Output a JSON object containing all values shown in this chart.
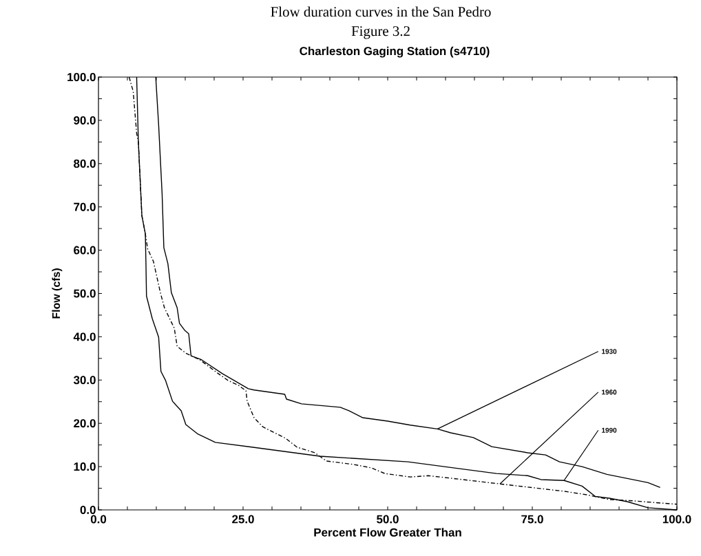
{
  "chart_data": {
    "type": "line",
    "title": "Flow duration curves in the San Pedro",
    "subtitle": "Figure 3.2",
    "xlabel": "Percent Flow Greater Than",
    "ylabel": "Flow (cfs)",
    "xlim": [
      0,
      100
    ],
    "ylim": [
      0,
      100
    ],
    "xticks": [
      {
        "value": 0,
        "label": "0.0"
      },
      {
        "value": 5,
        "label": null
      },
      {
        "value": 10,
        "label": null
      },
      {
        "value": 15,
        "label": null
      },
      {
        "value": 20,
        "label": null
      },
      {
        "value": 25,
        "label": "25.0"
      },
      {
        "value": 30,
        "label": null
      },
      {
        "value": 35,
        "label": null
      },
      {
        "value": 40,
        "label": null
      },
      {
        "value": 45,
        "label": null
      },
      {
        "value": 50,
        "label": "50.0"
      },
      {
        "value": 55,
        "label": null
      },
      {
        "value": 60,
        "label": null
      },
      {
        "value": 65,
        "label": null
      },
      {
        "value": 70,
        "label": null
      },
      {
        "value": 75,
        "label": "75.0"
      },
      {
        "value": 80,
        "label": null
      },
      {
        "value": 85,
        "label": null
      },
      {
        "value": 90,
        "label": null
      },
      {
        "value": 95,
        "label": null
      },
      {
        "value": 100,
        "label": "100.0"
      }
    ],
    "yticks": [
      {
        "value": 0,
        "label": "0.0"
      },
      {
        "value": 5,
        "label": null
      },
      {
        "value": 10,
        "label": "10.0"
      },
      {
        "value": 15,
        "label": null
      },
      {
        "value": 20,
        "label": "20.0"
      },
      {
        "value": 25,
        "label": null
      },
      {
        "value": 30,
        "label": "30.0"
      },
      {
        "value": 35,
        "label": null
      },
      {
        "value": 40,
        "label": "40.0"
      },
      {
        "value": 45,
        "label": null
      },
      {
        "value": 50,
        "label": "50.0"
      },
      {
        "value": 55,
        "label": null
      },
      {
        "value": 60,
        "label": "60.0"
      },
      {
        "value": 65,
        "label": null
      },
      {
        "value": 70,
        "label": "70.0"
      },
      {
        "value": 75,
        "label": null
      },
      {
        "value": 80,
        "label": "80.0"
      },
      {
        "value": 85,
        "label": null
      },
      {
        "value": 90,
        "label": "90.0"
      },
      {
        "value": 95,
        "label": null
      },
      {
        "value": 100,
        "label": "100.0"
      }
    ],
    "marker": "none",
    "series": [
      {
        "color": "#000000",
        "line_style": "solid",
        "x": [
          9.9,
          10.4,
          11.0,
          11.3,
          12.0,
          12.6,
          13.6,
          14.0,
          14.9,
          15.6,
          16.0,
          17.8,
          21.4,
          25.9,
          26.9,
          32.2,
          32.5,
          35.1,
          41.8,
          43.3,
          45.7,
          50.0,
          53.9,
          58.6,
          60.9,
          64.8,
          68.0,
          74.2,
          77.3,
          79.7,
          83.6,
          87.9,
          95.0,
          97.1
        ],
        "values": [
          100,
          89,
          73,
          60.6,
          56.9,
          50.2,
          46.7,
          43.1,
          41.5,
          40.7,
          35.6,
          34.7,
          31.5,
          28.0,
          27.7,
          26.7,
          25.6,
          24.5,
          23.7,
          22.9,
          21.3,
          20.5,
          19.6,
          18.7,
          17.8,
          16.7,
          14.6,
          13.2,
          12.7,
          11.1,
          10.0,
          8.2,
          6.3,
          5.2
        ]
      },
      {
        "color": "#000000",
        "line_style": "dashdot",
        "x": [
          5.3,
          6.0,
          6.6,
          6.9,
          7.5,
          8.1,
          8.5,
          9.5,
          10.7,
          11.4,
          13.1,
          13.6,
          15.1,
          17.5,
          20.7,
          22.4,
          24.2,
          25.5,
          25.7,
          26.9,
          28.4,
          32.4,
          34.3,
          37.4,
          39.4,
          44.1,
          47.2,
          49.5,
          53.9,
          57.0,
          61.7,
          69.4,
          80.5,
          84.4,
          88.3,
          92.3,
          100
        ],
        "values": [
          100,
          96.7,
          87,
          84.9,
          68,
          63.8,
          60.3,
          57.4,
          50.2,
          46.7,
          42.0,
          37.8,
          36.2,
          34.7,
          31.5,
          29.9,
          28.8,
          27.5,
          25.1,
          21.3,
          19.2,
          16.5,
          14.5,
          13.2,
          11.3,
          10.5,
          9.7,
          8.4,
          7.6,
          7.9,
          7.2,
          6.0,
          4.3,
          3.5,
          2.4,
          2.1,
          1.3
        ]
      },
      {
        "color": "#000000",
        "line_style": "solid",
        "x": [
          6.6,
          6.9,
          7.5,
          8.1,
          8.2,
          8.3,
          9.3,
          10.4,
          10.8,
          11.6,
          12.8,
          14.3,
          15.1,
          17.1,
          20.2,
          26.5,
          38.3,
          53.5,
          60.9,
          68.8,
          74.2,
          76.5,
          80.5,
          83.6,
          85.9,
          88.3,
          91.4,
          95.0,
          100
        ],
        "values": [
          100,
          84.9,
          68,
          63.8,
          57.4,
          49.4,
          44.2,
          39.9,
          32.0,
          29.9,
          25.1,
          22.9,
          19.7,
          17.6,
          15.6,
          14.5,
          12.4,
          11.1,
          9.8,
          8.4,
          7.9,
          7.0,
          6.8,
          5.5,
          3.1,
          2.7,
          1.9,
          0.5,
          0
        ]
      }
    ],
    "annotations": [
      "Charleston Gaging Station (s4710)",
      {
        "text": "1930",
        "x": 58.6,
        "y": 18.7
      },
      {
        "text": "1960",
        "x": 69.4,
        "y": 6.0
      },
      {
        "text": "1990",
        "x": 80.5,
        "y": 6.8
      }
    ]
  }
}
